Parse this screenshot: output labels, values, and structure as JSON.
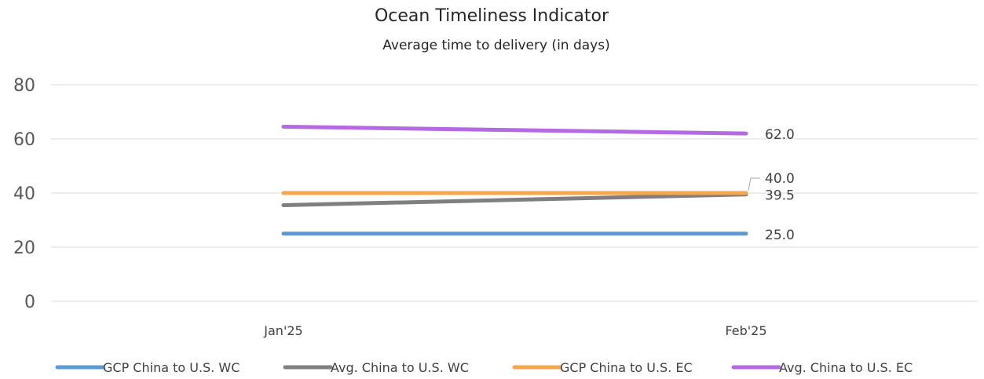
{
  "chart_data": {
    "type": "line",
    "title": "Ocean Timeliness Indicator",
    "subtitle": "Average time to delivery (in days)",
    "xlabel": "",
    "ylabel": "",
    "categories": [
      "Jan'25",
      "Feb'25"
    ],
    "ylim": [
      0,
      80
    ],
    "yticks": [
      "0",
      "20",
      "40",
      "60",
      "80"
    ],
    "grid": true,
    "legend_position": "bottom",
    "series": [
      {
        "name": "GCP China to U.S. WC",
        "color": "#5b9bd5",
        "values": [
          25.0,
          25.0
        ],
        "end_label": "25.0"
      },
      {
        "name": "Avg. China to U.S. WC",
        "color": "#7f7f7f",
        "values": [
          35.5,
          39.5
        ],
        "end_label": "39.5"
      },
      {
        "name": "GCP China to U.S. EC",
        "color": "#f4a84b",
        "values": [
          40.0,
          40.0
        ],
        "end_label": "40.0"
      },
      {
        "name": "Avg. China to U.S. EC",
        "color": "#b36ae2",
        "values": [
          64.5,
          62.0
        ],
        "end_label": "62.0"
      }
    ]
  }
}
